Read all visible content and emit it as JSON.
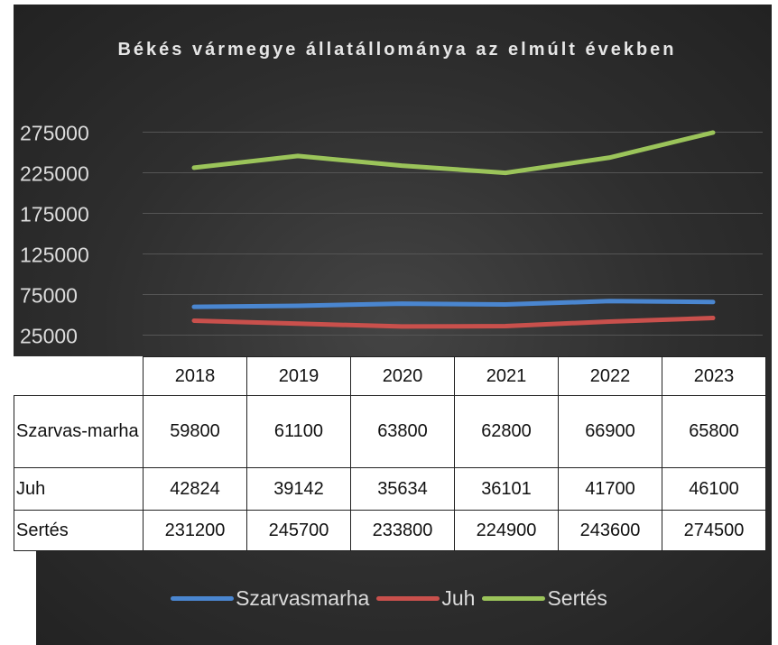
{
  "chart_data": {
    "type": "line",
    "title": "Békés vármegye állatállománya az elmúlt években",
    "categories": [
      "2018",
      "2019",
      "2020",
      "2021",
      "2022",
      "2023"
    ],
    "series": [
      {
        "name": "Szarvasmarha",
        "color": "#4a86d0",
        "values": [
          59800,
          61100,
          63800,
          62800,
          66900,
          65800
        ]
      },
      {
        "name": "Juh",
        "color": "#c9504c",
        "values": [
          42824,
          39142,
          35634,
          36101,
          41700,
          46100
        ]
      },
      {
        "name": "Sertés",
        "color": "#9bc45a",
        "values": [
          231200,
          245700,
          233800,
          224900,
          243600,
          274500
        ]
      }
    ],
    "table_row_labels": [
      "Szarvas-marha",
      "Juh",
      "Sertés"
    ],
    "ylim": [
      0,
      300000
    ],
    "yticks": [
      25000,
      75000,
      125000,
      175000,
      225000,
      275000
    ],
    "grid": true
  }
}
